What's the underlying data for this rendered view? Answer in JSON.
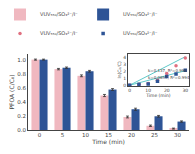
{
  "chart_data": [
    {
      "type": "bar",
      "xlabel": "Time (min)",
      "ylabel": "PFOA (C/C₀)",
      "categories": [
        "0",
        "5",
        "10",
        "15",
        "20",
        "25",
        "30"
      ],
      "series": [
        {
          "name": "VUV₅₅₀/SO₃²⁻/I⁻",
          "color": "#f0b8c0",
          "values": [
            1.0,
            0.865,
            0.77,
            0.49,
            0.185,
            0.06,
            0.02
          ],
          "errors": [
            0.008,
            0.01,
            0.013,
            0.015,
            0.013,
            0.01,
            0.007
          ]
        },
        {
          "name": "UV₅₅₀/SO₃²⁻/I⁻",
          "color": "#2e5496",
          "values": [
            1.0,
            0.885,
            0.835,
            0.575,
            0.295,
            0.195,
            0.12
          ],
          "errors": [
            0.007,
            0.01,
            0.012,
            0.013,
            0.015,
            0.012,
            0.009
          ]
        }
      ],
      "ylim": [
        0.0,
        1.08
      ],
      "yticks": [
        {
          "value": 0.0,
          "label": "0.0"
        },
        {
          "value": 0.2,
          "label": "0.2"
        },
        {
          "value": 0.4,
          "label": "0.4"
        },
        {
          "value": 0.6,
          "label": "0.6"
        },
        {
          "value": 0.8,
          "label": "0.8"
        },
        {
          "value": 1.0,
          "label": "1.0"
        }
      ],
      "grid": false,
      "legend": "top"
    },
    {
      "type": "scatter",
      "xlabel": "Time (min)",
      "ylabel": "ln(C₀/C)",
      "xlim": [
        -1,
        32
      ],
      "xticks": [
        0,
        10,
        20,
        30
      ],
      "ylim": [
        -0.1,
        4.5
      ],
      "yticks": [
        0,
        1,
        2,
        3,
        4
      ],
      "series": [
        {
          "name": "VUV₅₅₀/SO₃²⁻/I⁻",
          "color": "#e07080",
          "marker": "circle",
          "x": [
            0,
            5,
            10,
            15,
            20,
            25,
            30
          ],
          "values": [
            0.0,
            0.145,
            0.26,
            0.71,
            1.69,
            2.81,
            3.91
          ]
        },
        {
          "name": "UV₅₅₀/SO₃²⁻/I⁻",
          "color": "#2e5496",
          "marker": "square",
          "x": [
            0,
            5,
            10,
            15,
            20,
            25,
            30
          ],
          "values": [
            0.0,
            0.12,
            0.18,
            0.56,
            1.24,
            1.63,
            2.16
          ]
        },
        {
          "type": "line",
          "color": "#5ec8c8",
          "line_style": "solid",
          "x": [
            0,
            30
          ],
          "values": [
            0,
            4.11
          ]
        },
        {
          "type": "line",
          "color": "#5ec8c8",
          "line_style": "solid",
          "x": [
            0,
            30
          ],
          "values": [
            0,
            2.091
          ]
        }
      ],
      "annotations": [
        "k=0.137, R²=0.998",
        "k=0.0697, R²=0.994"
      ],
      "grid": false,
      "legend": "top"
    }
  ]
}
